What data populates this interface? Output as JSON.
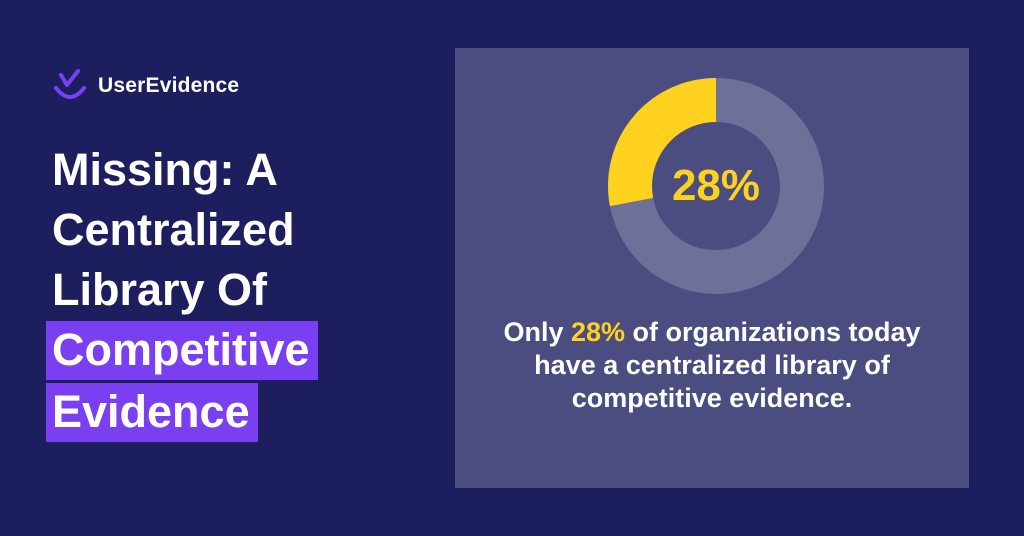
{
  "brand": {
    "name": "UserEvidence",
    "accent_color": "#7b3ff2",
    "background_color": "#1c1e5e"
  },
  "headline": {
    "line1": "Missing: A",
    "line2": "Centralized",
    "line3": "Library Of",
    "highlight1": "Competitive",
    "highlight2": "Evidence"
  },
  "chart_data": {
    "type": "pie",
    "variant": "donut",
    "slices": [
      {
        "value": 28,
        "color": "#ffd21f"
      },
      {
        "value": 72,
        "color": "#6f7099"
      }
    ],
    "center_label": "28%"
  },
  "caption": {
    "prefix": "Only ",
    "highlight": "28%",
    "suffix": " of organizations today have a centralized library of competitive evidence."
  }
}
